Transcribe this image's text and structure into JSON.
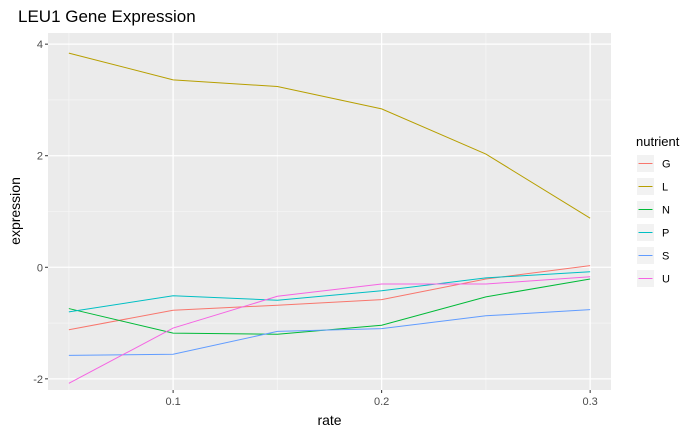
{
  "chart_data": {
    "type": "line",
    "title": "LEU1 Gene Expression",
    "xlabel": "rate",
    "ylabel": "expression",
    "xlim": [
      0.04,
      0.31
    ],
    "ylim": [
      -2.2,
      4.2
    ],
    "xticks": [
      0.1,
      0.2,
      0.3
    ],
    "xtick_labels": [
      "0.1",
      "0.2",
      "0.3"
    ],
    "yticks": [
      -2,
      0,
      2,
      4
    ],
    "ytick_labels": [
      "-2",
      "0",
      "2",
      "4"
    ],
    "grid": true,
    "legend": {
      "title": "nutrient",
      "position": "right"
    },
    "x": [
      0.05,
      0.1,
      0.15,
      0.2,
      0.25,
      0.3
    ],
    "series": [
      {
        "name": "G",
        "color": "#F8766D",
        "values": [
          -1.12,
          -0.77,
          -0.68,
          -0.58,
          -0.21,
          0.03
        ]
      },
      {
        "name": "L",
        "color": "#B79F00",
        "values": [
          3.84,
          3.36,
          3.24,
          2.84,
          2.03,
          0.88
        ]
      },
      {
        "name": "N",
        "color": "#00BA38",
        "values": [
          -0.74,
          -1.18,
          -1.2,
          -1.04,
          -0.53,
          -0.21
        ]
      },
      {
        "name": "P",
        "color": "#00BFC4",
        "values": [
          -0.8,
          -0.51,
          -0.59,
          -0.42,
          -0.19,
          -0.08
        ]
      },
      {
        "name": "S",
        "color": "#619CFF",
        "values": [
          -1.58,
          -1.56,
          -1.15,
          -1.1,
          -0.87,
          -0.76
        ]
      },
      {
        "name": "U",
        "color": "#F564E3",
        "values": [
          -2.08,
          -1.09,
          -0.52,
          -0.3,
          -0.3,
          -0.17
        ]
      }
    ]
  }
}
